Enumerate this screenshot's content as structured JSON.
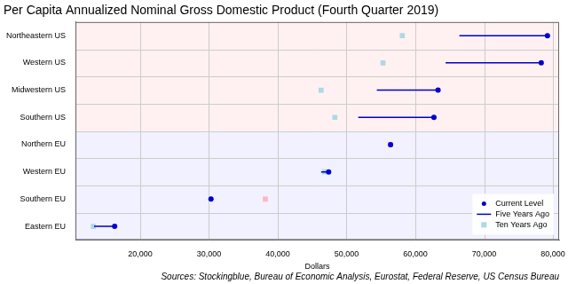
{
  "chart_data": {
    "type": "dot_range",
    "title": "Per Capita Annualized Nominal Gross Domestic Product (Fourth Quarter 2019)",
    "subtitle": "Sources: Stockingblue, Bureau of Economic Analysis, Eurostat, Federal Reserve, US Census Bureau",
    "x_label": "Dollars",
    "orientation": "horizontal",
    "categories": [
      "Northeastern US",
      "Western US",
      "Midwestern US",
      "Southern US",
      "Northern EU",
      "Western EU",
      "Southern EU",
      "Eastern EU"
    ],
    "series": [
      {
        "name": "Current Level",
        "color": "#0000cc",
        "marker": "circle",
        "values": [
          79200,
          78300,
          63300,
          62700,
          56400,
          47400,
          30300,
          16300
        ]
      },
      {
        "name": "Five Years Ago",
        "color": "#0000cc",
        "line_style": "solid",
        "values": [
          66400,
          64400,
          54400,
          51700,
          56200,
          46300,
          30100,
          13300
        ]
      },
      {
        "name": "Ten Years Ago",
        "marker": "square",
        "colors": [
          "#add8e6",
          "#add8e6",
          "#add8e6",
          "#add8e6",
          "#ffb6c1",
          "#add8e6",
          "#ffb6c1",
          "#add8e6"
        ],
        "values": [
          58100,
          55300,
          46300,
          48300,
          56400,
          46800,
          38200,
          13200
        ]
      }
    ],
    "xlim": [
      10600,
      80900
    ],
    "xticks": [
      {
        "value": 20000,
        "label": "20,000"
      },
      {
        "value": 30000,
        "label": "30,000"
      },
      {
        "value": 40000,
        "label": "40,000"
      },
      {
        "value": 50000,
        "label": "50,000"
      },
      {
        "value": 60000,
        "label": "60,000"
      },
      {
        "value": 70000,
        "label": "70,000"
      },
      {
        "value": 80000,
        "label": "80,000"
      }
    ],
    "grid": true,
    "legend": "lower right"
  }
}
